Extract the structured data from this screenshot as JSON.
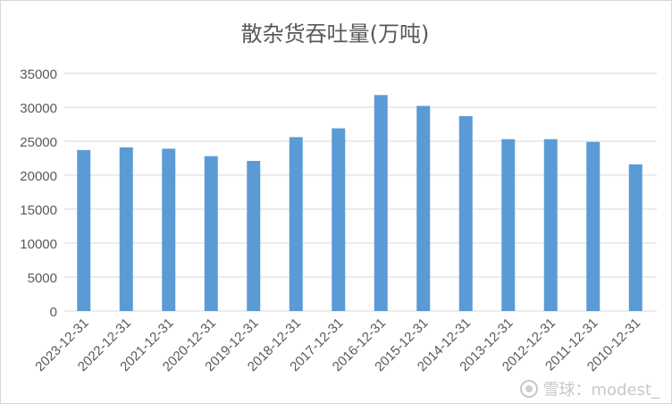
{
  "chart_data": {
    "type": "bar",
    "title": "散杂货吞吐量(万吨)",
    "categories": [
      "2023-12-31",
      "2022-12-31",
      "2021-12-31",
      "2020-12-31",
      "2019-12-31",
      "2018-12-31",
      "2017-12-31",
      "2016-12-31",
      "2015-12-31",
      "2014-12-31",
      "2013-12-31",
      "2012-12-31",
      "2011-12-31",
      "2010-12-31"
    ],
    "values": [
      23700,
      24100,
      23900,
      22800,
      22100,
      25600,
      26900,
      31800,
      30200,
      28700,
      25300,
      25300,
      24900,
      21600
    ],
    "yticks": [
      "0",
      "5000",
      "10000",
      "15000",
      "20000",
      "25000",
      "30000",
      "35000"
    ],
    "ylim": [
      0,
      35000
    ],
    "bar_color": "#5b9bd5",
    "grid": true,
    "legend": "none"
  },
  "watermark": {
    "text": "雪球：modest_"
  }
}
